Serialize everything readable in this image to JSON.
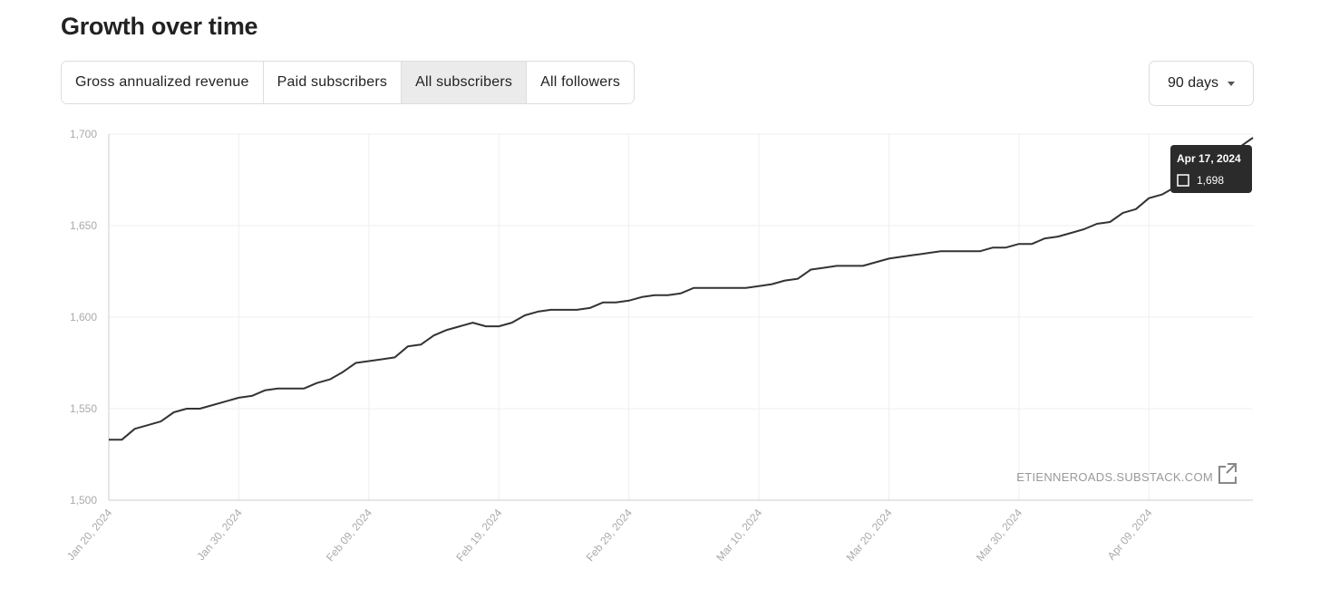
{
  "header": {
    "title": "Growth over time"
  },
  "tabs": [
    {
      "label": "Gross annualized revenue",
      "active": false
    },
    {
      "label": "Paid subscribers",
      "active": false
    },
    {
      "label": "All subscribers",
      "active": true
    },
    {
      "label": "All followers",
      "active": false
    }
  ],
  "range_dropdown": {
    "label": "90 days"
  },
  "chart_data": {
    "type": "line",
    "color": "#333333",
    "grid": true,
    "x": [
      "2024-01-20",
      "2024-01-21",
      "2024-01-22",
      "2024-01-23",
      "2024-01-24",
      "2024-01-25",
      "2024-01-26",
      "2024-01-27",
      "2024-01-28",
      "2024-01-29",
      "2024-01-30",
      "2024-01-31",
      "2024-02-01",
      "2024-02-02",
      "2024-02-03",
      "2024-02-04",
      "2024-02-05",
      "2024-02-06",
      "2024-02-07",
      "2024-02-08",
      "2024-02-09",
      "2024-02-10",
      "2024-02-11",
      "2024-02-12",
      "2024-02-13",
      "2024-02-14",
      "2024-02-15",
      "2024-02-16",
      "2024-02-17",
      "2024-02-18",
      "2024-02-19",
      "2024-02-20",
      "2024-02-21",
      "2024-02-22",
      "2024-02-23",
      "2024-02-24",
      "2024-02-25",
      "2024-02-26",
      "2024-02-27",
      "2024-02-28",
      "2024-02-29",
      "2024-03-01",
      "2024-03-02",
      "2024-03-03",
      "2024-03-04",
      "2024-03-05",
      "2024-03-06",
      "2024-03-07",
      "2024-03-08",
      "2024-03-09",
      "2024-03-10",
      "2024-03-11",
      "2024-03-12",
      "2024-03-13",
      "2024-03-14",
      "2024-03-15",
      "2024-03-16",
      "2024-03-17",
      "2024-03-18",
      "2024-03-19",
      "2024-03-20",
      "2024-03-21",
      "2024-03-22",
      "2024-03-23",
      "2024-03-24",
      "2024-03-25",
      "2024-03-26",
      "2024-03-27",
      "2024-03-28",
      "2024-03-29",
      "2024-03-30",
      "2024-03-31",
      "2024-04-01",
      "2024-04-02",
      "2024-04-03",
      "2024-04-04",
      "2024-04-05",
      "2024-04-06",
      "2024-04-07",
      "2024-04-08",
      "2024-04-09",
      "2024-04-10",
      "2024-04-11",
      "2024-04-12",
      "2024-04-13",
      "2024-04-14",
      "2024-04-15",
      "2024-04-16",
      "2024-04-17"
    ],
    "values": [
      1533,
      1533,
      1539,
      1541,
      1543,
      1548,
      1550,
      1550,
      1552,
      1554,
      1556,
      1557,
      1560,
      1561,
      1561,
      1561,
      1564,
      1566,
      1570,
      1575,
      1576,
      1577,
      1578,
      1584,
      1585,
      1590,
      1593,
      1595,
      1597,
      1595,
      1595,
      1597,
      1601,
      1603,
      1604,
      1604,
      1604,
      1605,
      1608,
      1608,
      1609,
      1611,
      1612,
      1612,
      1613,
      1616,
      1616,
      1616,
      1616,
      1616,
      1617,
      1618,
      1620,
      1621,
      1626,
      1627,
      1628,
      1628,
      1628,
      1630,
      1632,
      1633,
      1634,
      1635,
      1636,
      1636,
      1636,
      1636,
      1638,
      1638,
      1640,
      1640,
      1643,
      1644,
      1646,
      1648,
      1651,
      1652,
      1657,
      1659,
      1665,
      1667,
      1671,
      1674,
      1678,
      1683,
      1688,
      1693,
      1698
    ],
    "xlim": [
      "2024-01-20",
      "2024-04-17"
    ],
    "xticks": [
      {
        "value": "2024-01-20",
        "label": "Jan 20, 2024"
      },
      {
        "value": "2024-01-30",
        "label": "Jan 30, 2024"
      },
      {
        "value": "2024-02-09",
        "label": "Feb 09, 2024"
      },
      {
        "value": "2024-02-19",
        "label": "Feb 19, 2024"
      },
      {
        "value": "2024-02-29",
        "label": "Feb 29, 2024"
      },
      {
        "value": "2024-03-10",
        "label": "Mar 10, 2024"
      },
      {
        "value": "2024-03-20",
        "label": "Mar 20, 2024"
      },
      {
        "value": "2024-03-30",
        "label": "Mar 30, 2024"
      },
      {
        "value": "2024-04-09",
        "label": "Apr 09, 2024"
      }
    ],
    "ylim": [
      1500,
      1700
    ],
    "yticks": [
      {
        "value": 1500,
        "label": "1,500"
      },
      {
        "value": 1550,
        "label": "1,550"
      },
      {
        "value": 1600,
        "label": "1,600"
      },
      {
        "value": 1650,
        "label": "1,650"
      },
      {
        "value": 1700,
        "label": "1,700"
      }
    ],
    "tooltip": {
      "title": "Apr 17, 2024",
      "label": "1,698"
    },
    "watermark": "ETIENNEROADS.SUBSTACK.COM"
  }
}
